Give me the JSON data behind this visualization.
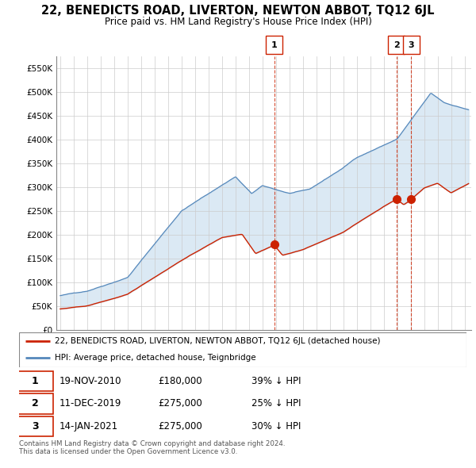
{
  "title": "22, BENEDICTS ROAD, LIVERTON, NEWTON ABBOT, TQ12 6JL",
  "subtitle": "Price paid vs. HM Land Registry's House Price Index (HPI)",
  "title_fontsize": 10.5,
  "subtitle_fontsize": 8.5,
  "ylim": [
    0,
    575000
  ],
  "yticks": [
    0,
    50000,
    100000,
    150000,
    200000,
    250000,
    300000,
    350000,
    400000,
    450000,
    500000,
    550000
  ],
  "ytick_labels": [
    "£0",
    "£50K",
    "£100K",
    "£150K",
    "£200K",
    "£250K",
    "£300K",
    "£350K",
    "£400K",
    "£450K",
    "£500K",
    "£550K"
  ],
  "xlim_start": 1994.7,
  "xlim_end": 2025.5,
  "xticks": [
    1995,
    1996,
    1997,
    1998,
    1999,
    2000,
    2001,
    2002,
    2003,
    2004,
    2005,
    2006,
    2007,
    2008,
    2009,
    2010,
    2011,
    2012,
    2013,
    2014,
    2015,
    2016,
    2017,
    2018,
    2019,
    2020,
    2021,
    2022,
    2023,
    2024,
    2025
  ],
  "hpi_color": "#5588bb",
  "hpi_fill_color": "#cce0f0",
  "price_color": "#cc2200",
  "marker_color": "#cc2200",
  "annotation_box_color": "#cc2200",
  "background_color": "#ffffff",
  "grid_color": "#cccccc",
  "transactions": [
    {
      "num": 1,
      "date": "19-NOV-2010",
      "x": 2010.88,
      "price": 180000,
      "pct": "39%",
      "dir": "↓"
    },
    {
      "num": 2,
      "date": "11-DEC-2019",
      "x": 2019.94,
      "price": 275000,
      "pct": "25%",
      "dir": "↓"
    },
    {
      "num": 3,
      "date": "14-JAN-2021",
      "x": 2021.04,
      "price": 275000,
      "pct": "30%",
      "dir": "↓"
    }
  ],
  "footnote": "Contains HM Land Registry data © Crown copyright and database right 2024.\nThis data is licensed under the Open Government Licence v3.0.",
  "legend_label_price": "22, BENEDICTS ROAD, LIVERTON, NEWTON ABBOT, TQ12 6JL (detached house)",
  "legend_label_hpi": "HPI: Average price, detached house, Teignbridge",
  "table_rows": [
    [
      "1",
      "19-NOV-2010",
      "£180,000",
      "39% ↓ HPI"
    ],
    [
      "2",
      "11-DEC-2019",
      "£275,000",
      "25% ↓ HPI"
    ],
    [
      "3",
      "14-JAN-2021",
      "£275,000",
      "30% ↓ HPI"
    ]
  ]
}
